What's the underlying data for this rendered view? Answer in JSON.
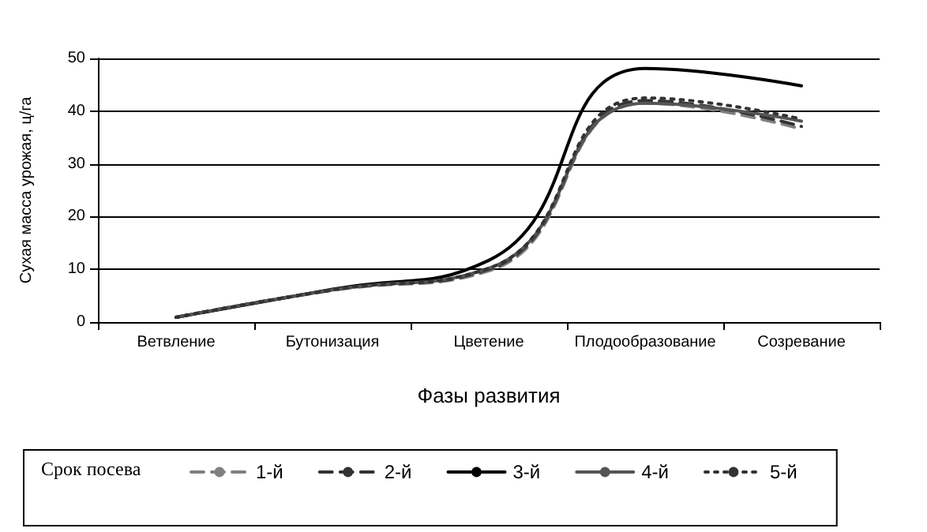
{
  "chart_data": {
    "type": "line",
    "xlabel": "Фазы развития",
    "ylabel": "Сухая масса урожая, ц/га",
    "legend_title": "Срок посева",
    "categories": [
      "Ветвление",
      "Бутонизация",
      "Цветение",
      "Плодообразование",
      "Созревание"
    ],
    "ylim": [
      0,
      50
    ],
    "yticks": [
      0,
      10,
      20,
      30,
      40,
      50
    ],
    "grid": "y",
    "legend": "bottom",
    "marker": "none",
    "series": [
      {
        "name": "1-й",
        "color": "#808080",
        "line_style": "dashed",
        "values": [
          0.9,
          6.0,
          9.7,
          41.5,
          36.6
        ]
      },
      {
        "name": "2-й",
        "color": "#333333",
        "line_style": "dashed",
        "values": [
          0.9,
          6.1,
          10.0,
          42.0,
          37.1
        ]
      },
      {
        "name": "3-й",
        "color": "#000000",
        "line_style": "solid",
        "values": [
          0.9,
          6.2,
          11.7,
          48.1,
          44.8
        ]
      },
      {
        "name": "4-й",
        "color": "#555555",
        "line_style": "solid",
        "values": [
          0.9,
          6.1,
          10.2,
          41.5,
          38.1
        ]
      },
      {
        "name": "5-й",
        "color": "#333333",
        "line_style": "dotted",
        "values": [
          0.9,
          6.1,
          10.2,
          42.5,
          38.5
        ]
      }
    ]
  }
}
